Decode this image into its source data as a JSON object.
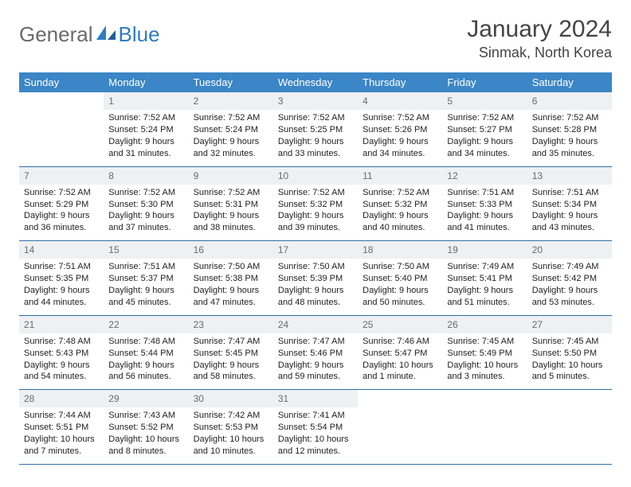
{
  "brand": {
    "part1": "General",
    "part2": "Blue"
  },
  "title": "January 2024",
  "location": "Sinmak, North Korea",
  "colors": {
    "header_bg": "#3b86c6",
    "header_text": "#ffffff",
    "daynum_bg": "#eef0f1",
    "rule": "#2f6fa8",
    "brand_blue": "#2f7dc0",
    "brand_gray": "#6a6a6a"
  },
  "dayNames": [
    "Sunday",
    "Monday",
    "Tuesday",
    "Wednesday",
    "Thursday",
    "Friday",
    "Saturday"
  ],
  "weeks": [
    [
      {
        "n": "",
        "lines": []
      },
      {
        "n": "1",
        "lines": [
          "Sunrise: 7:52 AM",
          "Sunset: 5:24 PM",
          "Daylight: 9 hours and 31 minutes."
        ]
      },
      {
        "n": "2",
        "lines": [
          "Sunrise: 7:52 AM",
          "Sunset: 5:24 PM",
          "Daylight: 9 hours and 32 minutes."
        ]
      },
      {
        "n": "3",
        "lines": [
          "Sunrise: 7:52 AM",
          "Sunset: 5:25 PM",
          "Daylight: 9 hours and 33 minutes."
        ]
      },
      {
        "n": "4",
        "lines": [
          "Sunrise: 7:52 AM",
          "Sunset: 5:26 PM",
          "Daylight: 9 hours and 34 minutes."
        ]
      },
      {
        "n": "5",
        "lines": [
          "Sunrise: 7:52 AM",
          "Sunset: 5:27 PM",
          "Daylight: 9 hours and 34 minutes."
        ]
      },
      {
        "n": "6",
        "lines": [
          "Sunrise: 7:52 AM",
          "Sunset: 5:28 PM",
          "Daylight: 9 hours and 35 minutes."
        ]
      }
    ],
    [
      {
        "n": "7",
        "lines": [
          "Sunrise: 7:52 AM",
          "Sunset: 5:29 PM",
          "Daylight: 9 hours and 36 minutes."
        ]
      },
      {
        "n": "8",
        "lines": [
          "Sunrise: 7:52 AM",
          "Sunset: 5:30 PM",
          "Daylight: 9 hours and 37 minutes."
        ]
      },
      {
        "n": "9",
        "lines": [
          "Sunrise: 7:52 AM",
          "Sunset: 5:31 PM",
          "Daylight: 9 hours and 38 minutes."
        ]
      },
      {
        "n": "10",
        "lines": [
          "Sunrise: 7:52 AM",
          "Sunset: 5:32 PM",
          "Daylight: 9 hours and 39 minutes."
        ]
      },
      {
        "n": "11",
        "lines": [
          "Sunrise: 7:52 AM",
          "Sunset: 5:32 PM",
          "Daylight: 9 hours and 40 minutes."
        ]
      },
      {
        "n": "12",
        "lines": [
          "Sunrise: 7:51 AM",
          "Sunset: 5:33 PM",
          "Daylight: 9 hours and 41 minutes."
        ]
      },
      {
        "n": "13",
        "lines": [
          "Sunrise: 7:51 AM",
          "Sunset: 5:34 PM",
          "Daylight: 9 hours and 43 minutes."
        ]
      }
    ],
    [
      {
        "n": "14",
        "lines": [
          "Sunrise: 7:51 AM",
          "Sunset: 5:35 PM",
          "Daylight: 9 hours and 44 minutes."
        ]
      },
      {
        "n": "15",
        "lines": [
          "Sunrise: 7:51 AM",
          "Sunset: 5:37 PM",
          "Daylight: 9 hours and 45 minutes."
        ]
      },
      {
        "n": "16",
        "lines": [
          "Sunrise: 7:50 AM",
          "Sunset: 5:38 PM",
          "Daylight: 9 hours and 47 minutes."
        ]
      },
      {
        "n": "17",
        "lines": [
          "Sunrise: 7:50 AM",
          "Sunset: 5:39 PM",
          "Daylight: 9 hours and 48 minutes."
        ]
      },
      {
        "n": "18",
        "lines": [
          "Sunrise: 7:50 AM",
          "Sunset: 5:40 PM",
          "Daylight: 9 hours and 50 minutes."
        ]
      },
      {
        "n": "19",
        "lines": [
          "Sunrise: 7:49 AM",
          "Sunset: 5:41 PM",
          "Daylight: 9 hours and 51 minutes."
        ]
      },
      {
        "n": "20",
        "lines": [
          "Sunrise: 7:49 AM",
          "Sunset: 5:42 PM",
          "Daylight: 9 hours and 53 minutes."
        ]
      }
    ],
    [
      {
        "n": "21",
        "lines": [
          "Sunrise: 7:48 AM",
          "Sunset: 5:43 PM",
          "Daylight: 9 hours and 54 minutes."
        ]
      },
      {
        "n": "22",
        "lines": [
          "Sunrise: 7:48 AM",
          "Sunset: 5:44 PM",
          "Daylight: 9 hours and 56 minutes."
        ]
      },
      {
        "n": "23",
        "lines": [
          "Sunrise: 7:47 AM",
          "Sunset: 5:45 PM",
          "Daylight: 9 hours and 58 minutes."
        ]
      },
      {
        "n": "24",
        "lines": [
          "Sunrise: 7:47 AM",
          "Sunset: 5:46 PM",
          "Daylight: 9 hours and 59 minutes."
        ]
      },
      {
        "n": "25",
        "lines": [
          "Sunrise: 7:46 AM",
          "Sunset: 5:47 PM",
          "Daylight: 10 hours and 1 minute."
        ]
      },
      {
        "n": "26",
        "lines": [
          "Sunrise: 7:45 AM",
          "Sunset: 5:49 PM",
          "Daylight: 10 hours and 3 minutes."
        ]
      },
      {
        "n": "27",
        "lines": [
          "Sunrise: 7:45 AM",
          "Sunset: 5:50 PM",
          "Daylight: 10 hours and 5 minutes."
        ]
      }
    ],
    [
      {
        "n": "28",
        "lines": [
          "Sunrise: 7:44 AM",
          "Sunset: 5:51 PM",
          "Daylight: 10 hours and 7 minutes."
        ]
      },
      {
        "n": "29",
        "lines": [
          "Sunrise: 7:43 AM",
          "Sunset: 5:52 PM",
          "Daylight: 10 hours and 8 minutes."
        ]
      },
      {
        "n": "30",
        "lines": [
          "Sunrise: 7:42 AM",
          "Sunset: 5:53 PM",
          "Daylight: 10 hours and 10 minutes."
        ]
      },
      {
        "n": "31",
        "lines": [
          "Sunrise: 7:41 AM",
          "Sunset: 5:54 PM",
          "Daylight: 10 hours and 12 minutes."
        ]
      },
      {
        "n": "",
        "lines": []
      },
      {
        "n": "",
        "lines": []
      },
      {
        "n": "",
        "lines": []
      }
    ]
  ]
}
